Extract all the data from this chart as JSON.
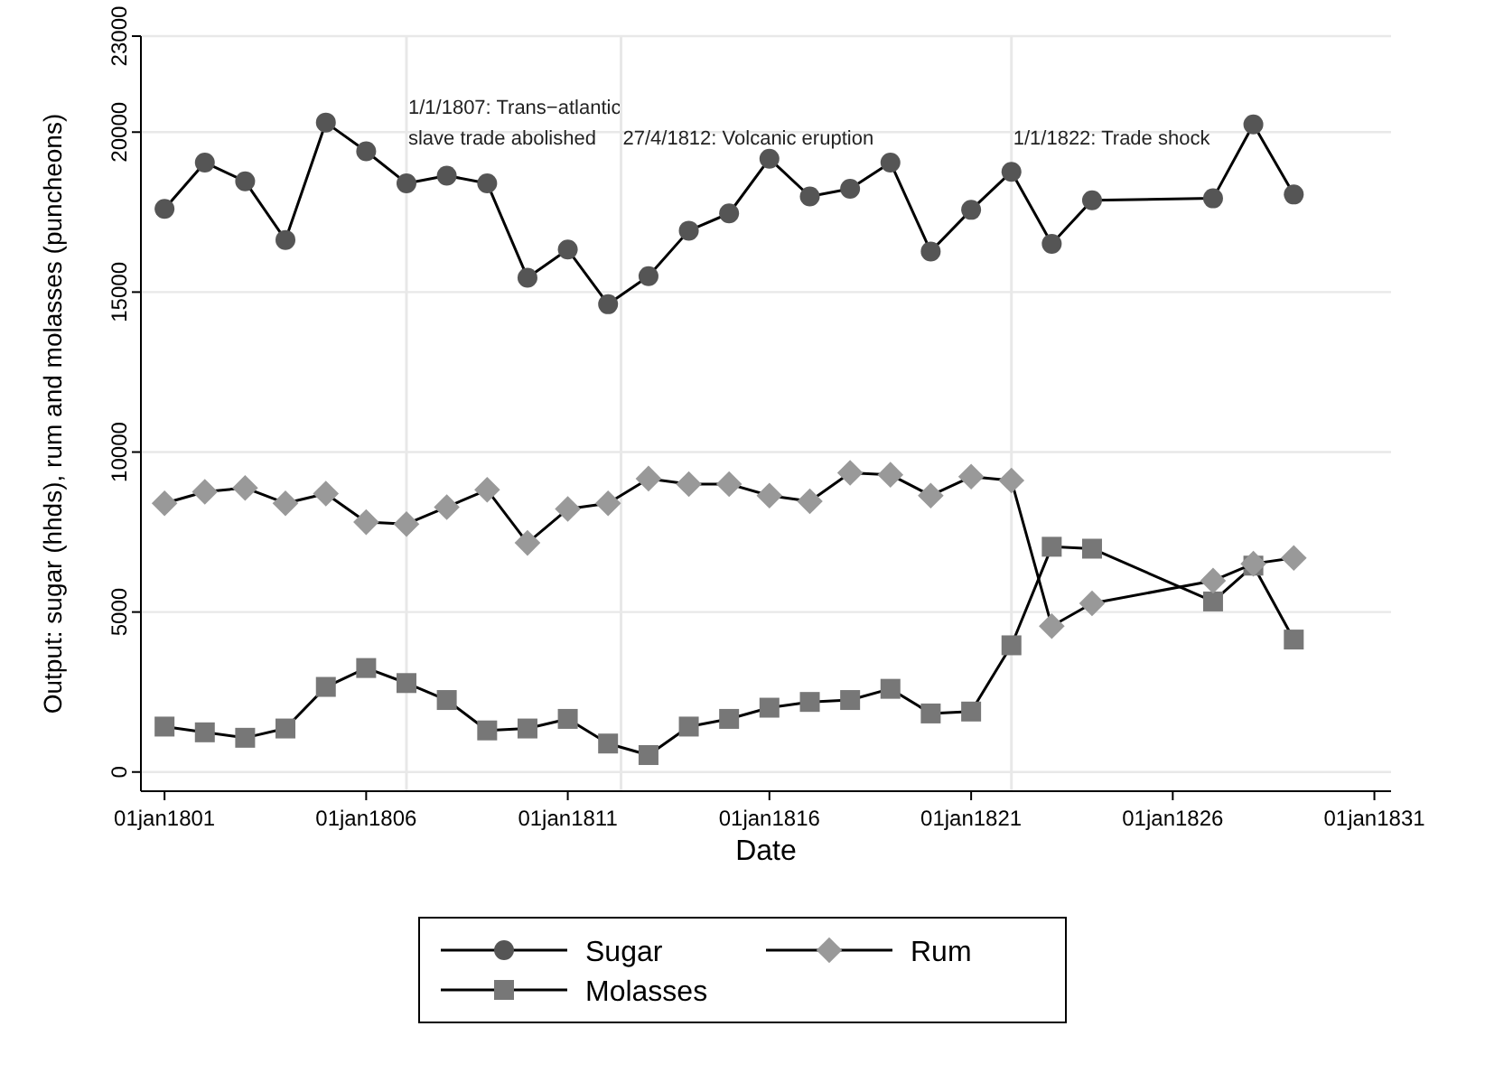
{
  "chart_data": {
    "type": "line",
    "xlabel": "Date",
    "ylabel": "Output: sugar (hhds), rum and molasses (puncheons)",
    "x": [
      "1801",
      "1802",
      "1803",
      "1804",
      "1805",
      "1806",
      "1807",
      "1808",
      "1809",
      "1810",
      "1811",
      "1812",
      "1813",
      "1814",
      "1815",
      "1816",
      "1817",
      "1818",
      "1819",
      "1820",
      "1821",
      "1822",
      "1823",
      "1824",
      "1827",
      "1828",
      "1829"
    ],
    "series": [
      {
        "name": "Sugar",
        "color": "#555555",
        "marker": "circle",
        "values": [
          17600,
          19050,
          18460,
          16630,
          20300,
          19400,
          18400,
          18640,
          18400,
          15450,
          16330,
          14620,
          15500,
          16920,
          17460,
          19170,
          17990,
          18230,
          19050,
          16270,
          17570,
          18760,
          16510,
          17870,
          17930,
          20240,
          18050
        ]
      },
      {
        "name": "Rum",
        "color": "#999999",
        "marker": "diamond",
        "values": [
          8400,
          8760,
          8880,
          8400,
          8700,
          7810,
          7750,
          8280,
          8820,
          7160,
          8220,
          8400,
          9170,
          9000,
          9000,
          8640,
          8460,
          9350,
          9290,
          8640,
          9230,
          9110,
          4560,
          5270,
          5980,
          6510,
          6690
        ]
      },
      {
        "name": "Molasses",
        "color": "#777777",
        "marker": "square",
        "values": [
          1420,
          1240,
          1070,
          1360,
          2660,
          3250,
          2780,
          2250,
          1300,
          1360,
          1660,
          890,
          530,
          1420,
          1660,
          2010,
          2190,
          2250,
          2600,
          1830,
          1890,
          3960,
          7040,
          6980,
          5330,
          6450,
          4140
        ]
      }
    ],
    "xlim": [
      "1800-06-01",
      "1831-06-01"
    ],
    "xticks": [
      {
        "value": "1801-01-01",
        "label": "01jan1801"
      },
      {
        "value": "1806-01-01",
        "label": "01jan1806"
      },
      {
        "value": "1811-01-01",
        "label": "01jan1811"
      },
      {
        "value": "1816-01-01",
        "label": "01jan1816"
      },
      {
        "value": "1821-01-01",
        "label": "01jan1821"
      },
      {
        "value": "1826-01-01",
        "label": "01jan1826"
      },
      {
        "value": "1831-01-01",
        "label": "01jan1831"
      }
    ],
    "ylim": [
      -600,
      23000
    ],
    "yticks": [
      0,
      5000,
      10000,
      15000,
      20000,
      23000
    ],
    "grid": "y",
    "legend": "bottom",
    "line_style": "solid",
    "ref_lines": [
      {
        "axis": "x",
        "value": "1807-01-01",
        "label": "1/1/1807: Trans−atlantic\nslave trade abolished",
        "color": "#e8e8e8"
      },
      {
        "axis": "x",
        "value": "1812-04-27",
        "label": "27/4/1812: Volcanic eruption",
        "color": "#e8e8e8"
      },
      {
        "axis": "x",
        "value": "1822-01-01",
        "label": "1/1/1822: Trade shock",
        "color": "#e8e8e8"
      }
    ]
  }
}
